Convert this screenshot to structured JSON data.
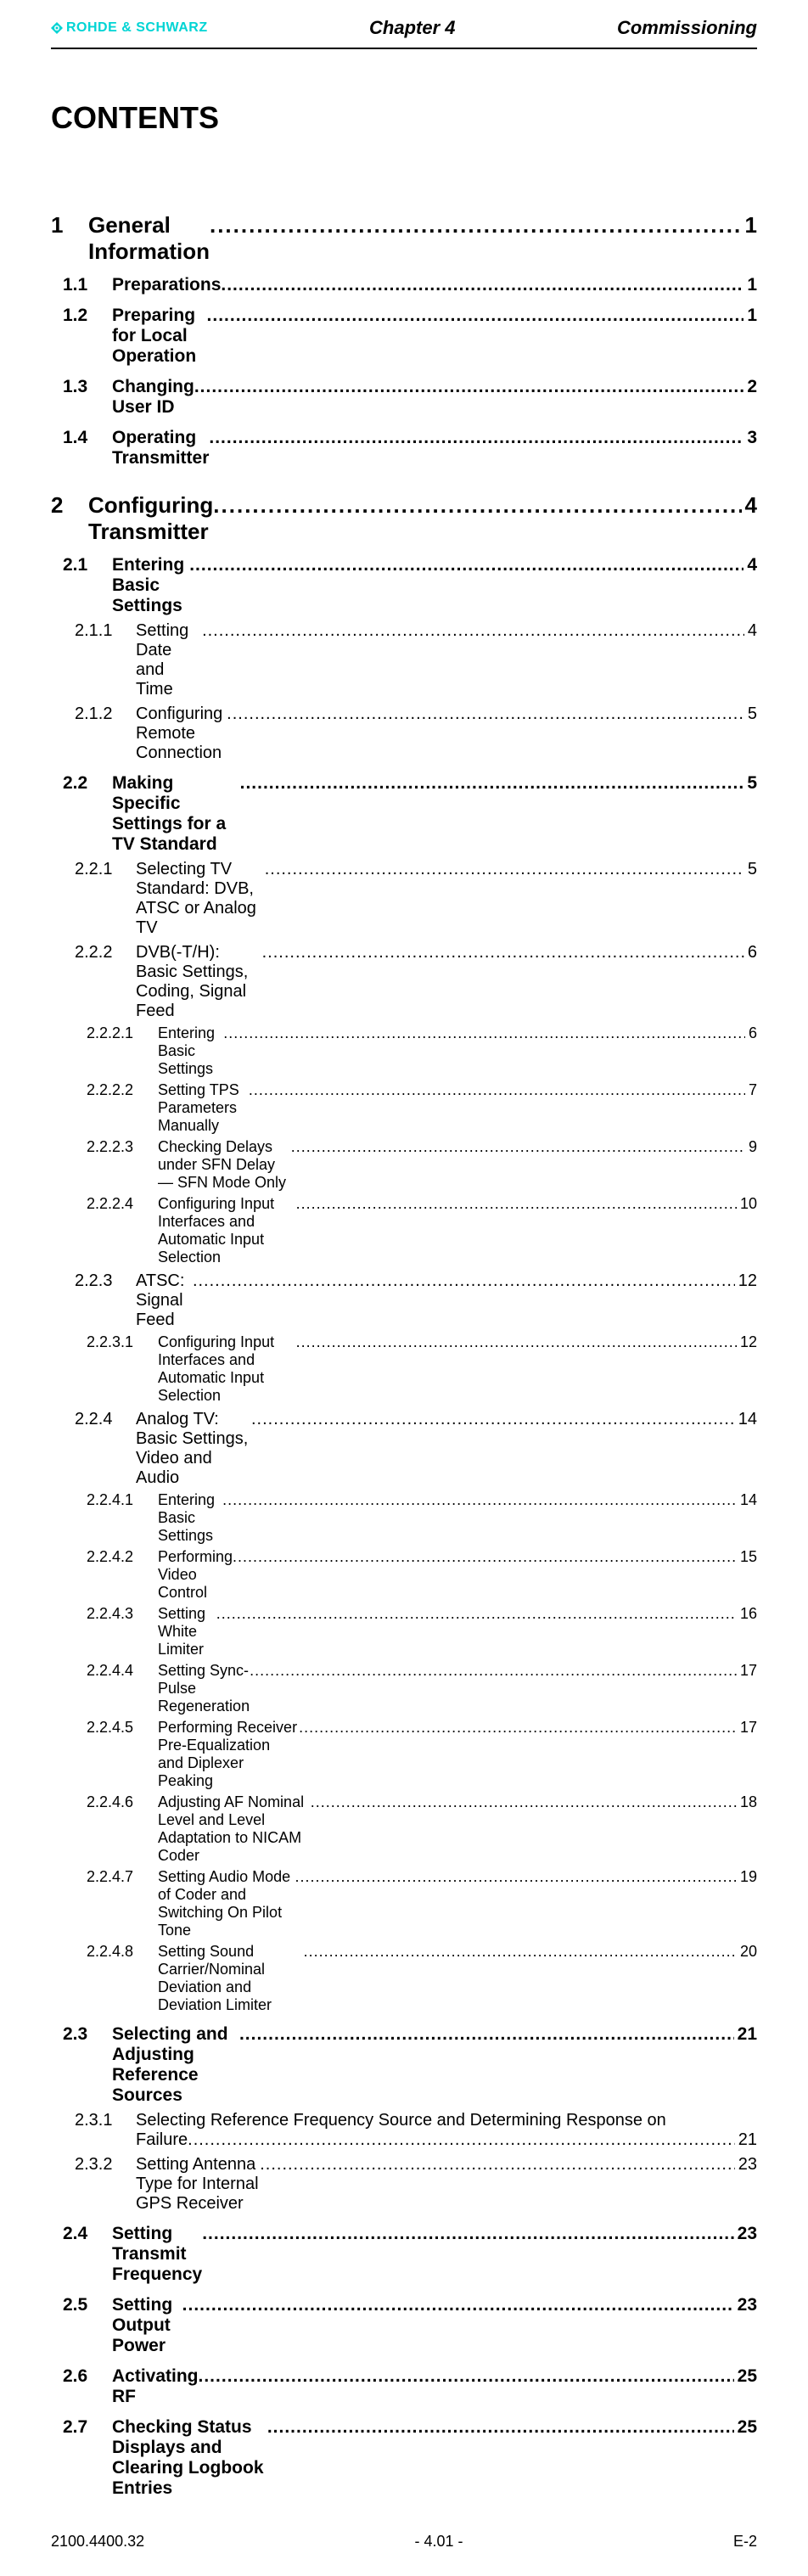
{
  "header": {
    "logo_text": "ROHDE & SCHWARZ",
    "chapter": "Chapter 4",
    "section": "Commissioning"
  },
  "title": "CONTENTS",
  "toc": [
    {
      "level": 0,
      "num": "1",
      "label": "General Information",
      "page": "1"
    },
    {
      "level": 1,
      "num": "1.1",
      "label": "Preparations",
      "page": "1"
    },
    {
      "level": 1,
      "num": "1.2",
      "label": "Preparing for Local Operation",
      "page": "1"
    },
    {
      "level": 1,
      "num": "1.3",
      "label": "Changing User ID",
      "page": "2"
    },
    {
      "level": 1,
      "num": "1.4",
      "label": "Operating Transmitter",
      "page": "3"
    },
    {
      "level": 0,
      "num": "2",
      "label": "Configuring Transmitter",
      "page": "4"
    },
    {
      "level": 1,
      "num": "2.1",
      "label": "Entering Basic Settings",
      "page": "4"
    },
    {
      "level": 2,
      "num": "2.1.1",
      "label": "Setting Date and Time",
      "page": "4"
    },
    {
      "level": 2,
      "num": "2.1.2",
      "label": "Configuring Remote Connection",
      "page": "5"
    },
    {
      "level": 1,
      "num": "2.2",
      "label": "Making Specific Settings for a TV Standard",
      "page": "5"
    },
    {
      "level": 2,
      "num": "2.2.1",
      "label": "Selecting TV Standard: DVB, ATSC or Analog TV",
      "page": "5"
    },
    {
      "level": 2,
      "num": "2.2.2",
      "label": "DVB(-T/H): Basic Settings, Coding, Signal Feed",
      "page": "6"
    },
    {
      "level": 3,
      "num": "2.2.2.1",
      "label": "Entering Basic Settings",
      "page": "6"
    },
    {
      "level": 3,
      "num": "2.2.2.2",
      "label": "Setting TPS Parameters Manually",
      "page": "7"
    },
    {
      "level": 3,
      "num": "2.2.2.3",
      "label": "Checking Delays under SFN Delay — SFN Mode Only",
      "page": "9"
    },
    {
      "level": 3,
      "num": "2.2.2.4",
      "label": "Configuring Input Interfaces and Automatic Input Selection",
      "page": "10"
    },
    {
      "level": 2,
      "num": "2.2.3",
      "label": "ATSC: Signal Feed",
      "page": "12"
    },
    {
      "level": 3,
      "num": "2.2.3.1",
      "label": "Configuring Input Interfaces and Automatic Input Selection",
      "page": "12"
    },
    {
      "level": 2,
      "num": "2.2.4",
      "label": "Analog TV: Basic Settings, Video and Audio",
      "page": "14"
    },
    {
      "level": 3,
      "num": "2.2.4.1",
      "label": "Entering Basic Settings",
      "page": "14"
    },
    {
      "level": 3,
      "num": "2.2.4.2",
      "label": "Performing Video Control",
      "page": "15"
    },
    {
      "level": 3,
      "num": "2.2.4.3",
      "label": "Setting White Limiter",
      "page": "16"
    },
    {
      "level": 3,
      "num": "2.2.4.4",
      "label": "Setting Sync-Pulse Regeneration",
      "page": "17"
    },
    {
      "level": 3,
      "num": "2.2.4.5",
      "label": "Performing Receiver Pre-Equalization and Diplexer Peaking",
      "page": "17"
    },
    {
      "level": 3,
      "num": "2.2.4.6",
      "label": "Adjusting AF Nominal Level and Level Adaptation to NICAM Coder",
      "page": "18"
    },
    {
      "level": 3,
      "num": "2.2.4.7",
      "label": "Setting Audio Mode of Coder and Switching On Pilot Tone",
      "page": "19"
    },
    {
      "level": 3,
      "num": "2.2.4.8",
      "label": "Setting Sound Carrier/Nominal Deviation and Deviation Limiter",
      "page": "20"
    },
    {
      "level": 1,
      "num": "2.3",
      "label": "Selecting and Adjusting Reference Sources",
      "page": "21"
    },
    {
      "level": 2,
      "num": "2.3.1",
      "label": "Selecting Reference Frequency Source and Determining Response on",
      "label2": "Failure",
      "page": "21",
      "multiline": true
    },
    {
      "level": 2,
      "num": "2.3.2",
      "label": "Setting Antenna Type for Internal GPS Receiver",
      "page": "23"
    },
    {
      "level": 1,
      "num": "2.4",
      "label": "Setting Transmit Frequency",
      "page": "23"
    },
    {
      "level": 1,
      "num": "2.5",
      "label": "Setting Output Power",
      "page": "23"
    },
    {
      "level": 1,
      "num": "2.6",
      "label": "Activating RF",
      "page": "25"
    },
    {
      "level": 1,
      "num": "2.7",
      "label": "Checking Status Displays and Clearing Logbook Entries",
      "page": "25"
    }
  ],
  "footer": {
    "left": "2100.4400.32",
    "center": "- 4.01 -",
    "right": "E-2"
  },
  "colors": {
    "logo": "#00d4d4",
    "text": "#000000",
    "background": "#ffffff"
  }
}
